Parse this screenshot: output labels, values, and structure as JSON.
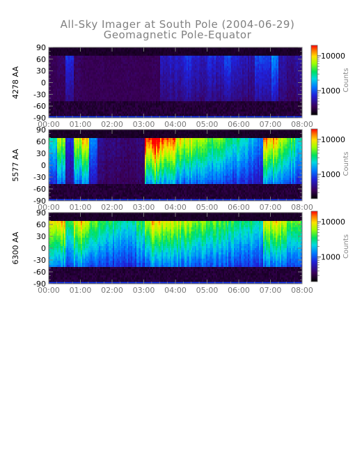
{
  "page": {
    "title": "All-Sky Imager at South Pole (2004-06-29)",
    "subtitle": "Geomagnetic Pole-Equator"
  },
  "chart_data": [
    {
      "type": "heatmap",
      "ylabel": "4278 AA",
      "x_ticks": [
        "00:00",
        "01:00",
        "02:00",
        "03:00",
        "04:00",
        "05:00",
        "06:00",
        "07:00",
        "08:00"
      ],
      "x_range_hours": [
        0,
        8
      ],
      "y_ticks": [
        90,
        60,
        30,
        0,
        -30,
        -60,
        -90
      ],
      "ylim": [
        -90,
        90
      ],
      "colorbar": {
        "label": "Counts",
        "ticks": [
          10000,
          1000
        ],
        "scale": "log"
      },
      "activity": [
        0.05,
        0.08,
        0.22,
        0.08,
        0.06,
        0.05,
        0.06,
        0.05,
        0.05,
        0.06,
        0.06,
        0.05,
        0.05,
        0.06,
        0.16,
        0.18,
        0.18,
        0.22,
        0.18,
        0.16,
        0.2,
        0.18,
        0.26,
        0.2,
        0.16,
        0.14,
        0.24,
        0.22,
        0.3,
        0.14,
        0.12,
        0.14
      ]
    },
    {
      "type": "heatmap",
      "ylabel": "5577 AA",
      "x_ticks": [
        "00:00",
        "01:00",
        "02:00",
        "03:00",
        "04:00",
        "05:00",
        "06:00",
        "07:00",
        "08:00"
      ],
      "x_range_hours": [
        0,
        8
      ],
      "y_ticks": [
        90,
        60,
        30,
        0,
        -30,
        -60,
        -90
      ],
      "ylim": [
        -90,
        90
      ],
      "colorbar": {
        "label": "Counts",
        "ticks": [
          10000,
          1000
        ],
        "scale": "log"
      },
      "activity": [
        0.42,
        0.55,
        0.2,
        0.6,
        0.65,
        0.3,
        0.12,
        0.1,
        0.1,
        0.08,
        0.08,
        0.1,
        0.78,
        0.85,
        0.75,
        0.7,
        0.65,
        0.62,
        0.58,
        0.55,
        0.5,
        0.55,
        0.48,
        0.45,
        0.4,
        0.36,
        0.3,
        0.7,
        0.68,
        0.58,
        0.5,
        0.42
      ]
    },
    {
      "type": "heatmap",
      "ylabel": "6300 AA",
      "x_ticks": [
        "00:00",
        "01:00",
        "02:00",
        "03:00",
        "04:00",
        "05:00",
        "06:00",
        "07:00",
        "08:00"
      ],
      "x_range_hours": [
        0,
        8
      ],
      "y_ticks": [
        90,
        60,
        30,
        0,
        -30,
        -60,
        -90
      ],
      "ylim": [
        -90,
        90
      ],
      "colorbar": {
        "label": "Counts",
        "ticks": [
          10000,
          1000
        ],
        "scale": "log"
      },
      "activity": [
        0.6,
        0.68,
        0.5,
        0.62,
        0.65,
        0.55,
        0.5,
        0.48,
        0.45,
        0.42,
        0.42,
        0.48,
        0.6,
        0.65,
        0.62,
        0.6,
        0.58,
        0.58,
        0.55,
        0.55,
        0.52,
        0.5,
        0.5,
        0.48,
        0.45,
        0.45,
        0.42,
        0.62,
        0.66,
        0.6,
        0.55,
        0.52
      ]
    }
  ]
}
